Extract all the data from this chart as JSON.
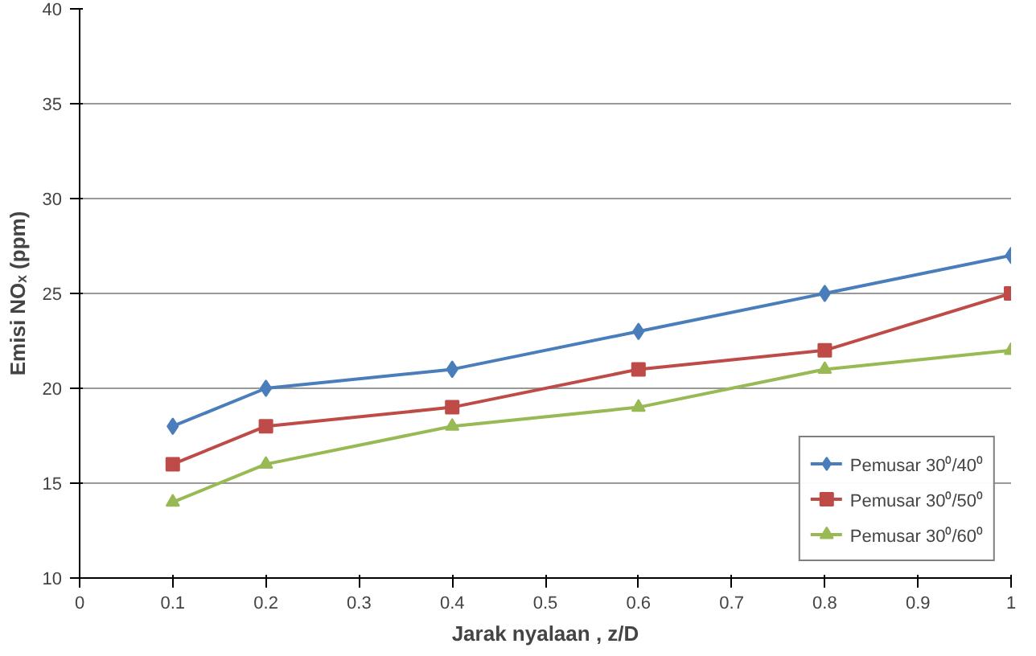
{
  "chart_data": {
    "type": "line",
    "xlabel": "Jarak nyalaan , z/D",
    "ylabel": "Emisi NOₓ (ppm)",
    "x": [
      0.1,
      0.2,
      0.4,
      0.6,
      0.8,
      1
    ],
    "series": [
      {
        "name": "Pemusar 30⁰/40⁰",
        "color": "#4a7ebb",
        "marker": "diamond",
        "values": [
          18,
          20,
          21,
          23,
          25,
          27
        ]
      },
      {
        "name": "Pemusar 30⁰/50⁰",
        "color": "#be4b48",
        "marker": "square",
        "values": [
          16,
          18,
          19,
          21,
          22,
          25
        ]
      },
      {
        "name": "Pemusar 30⁰/60⁰",
        "color": "#98b954",
        "marker": "triangle",
        "values": [
          14,
          16,
          18,
          19,
          21,
          22
        ]
      }
    ],
    "xlim": [
      0,
      1
    ],
    "xticks": [
      0,
      0.1,
      0.2,
      0.3,
      0.4,
      0.5,
      0.6,
      0.7,
      0.8,
      0.9,
      1
    ],
    "ylim": [
      10,
      40
    ],
    "yticks": [
      10,
      15,
      20,
      25,
      30,
      35,
      40
    ],
    "grid": "y",
    "legend": "bottom right",
    "line_style": "solid"
  }
}
